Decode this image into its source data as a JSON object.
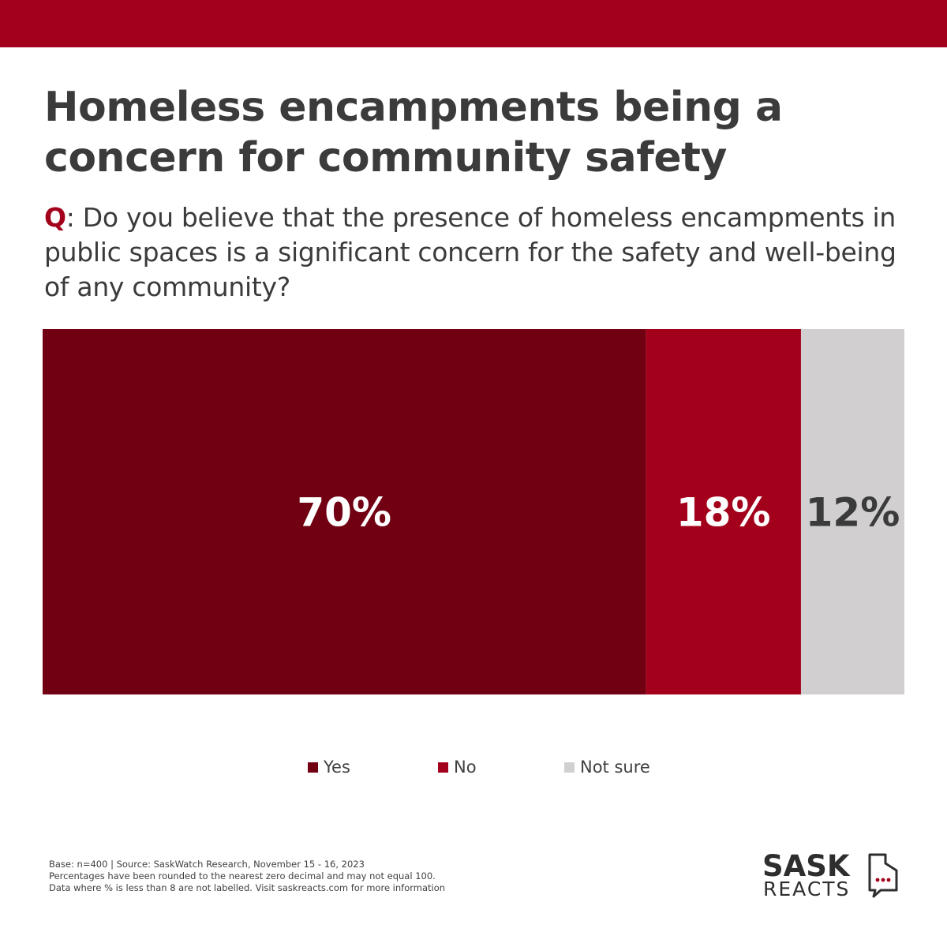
{
  "title": "Homeless encampments being a concern for community safety",
  "question": {
    "prefix": "Q",
    "text": ": Do you believe that the presence of homeless encampments in public spaces is a significant concern for the safety and well-being of any community?"
  },
  "colors": {
    "band": "#a3001b",
    "yes": "#700012",
    "no": "#a3001b",
    "not_sure": "#d1cfcf"
  },
  "chart_data": {
    "type": "bar",
    "orientation": "horizontal",
    "stacked": true,
    "categories": [
      ""
    ],
    "series": [
      {
        "name": "Yes",
        "values": [
          70
        ],
        "label": "70%",
        "color": "#700012",
        "label_color": "#ffffff"
      },
      {
        "name": "No",
        "values": [
          18
        ],
        "label": "18%",
        "color": "#a3001b",
        "label_color": "#ffffff"
      },
      {
        "name": "Not sure",
        "values": [
          12
        ],
        "label": "12%",
        "color": "#d1cfcf",
        "label_color": "#3b3b3b"
      }
    ],
    "xlim": [
      0,
      100
    ],
    "grid": false,
    "legend": "bottom"
  },
  "legend": [
    {
      "label": "Yes",
      "color": "#700012"
    },
    {
      "label": "No",
      "color": "#a3001b"
    },
    {
      "label": "Not sure",
      "color": "#d1cfcf"
    }
  ],
  "footnote": [
    "Base: n=400 | Source: SaskWatch Research, November 15 - 16, 2023",
    "Percentages have been rounded to the nearest zero decimal and may not equal 100.",
    "Data where % is less than 8 are not labelled. Visit saskreacts.com  for more information"
  ],
  "logo": {
    "line1": "SASK",
    "line2": "REACTS",
    "icon": "speech-bubble-icon"
  }
}
